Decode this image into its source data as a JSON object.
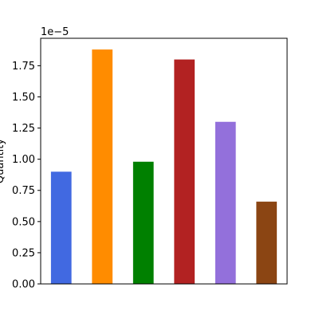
{
  "chart_data": {
    "type": "bar",
    "title": "",
    "xlabel": "",
    "ylabel": "Quantity",
    "scale_label": "1e−5",
    "ylim": [
      0,
      1.97
    ],
    "yticks": [
      0.0,
      0.25,
      0.5,
      0.75,
      1.0,
      1.25,
      1.5,
      1.75
    ],
    "ytick_labels": [
      "0.00",
      "0.25",
      "0.50",
      "0.75",
      "1.00",
      "1.25",
      "1.50",
      "1.75"
    ],
    "grid": false,
    "legend": "none",
    "values": [
      0.9,
      1.88,
      0.98,
      1.8,
      1.3,
      0.66
    ],
    "colors": [
      "#4169e1",
      "#ff8c00",
      "#008000",
      "#b22222",
      "#9370db",
      "#8b4513"
    ]
  }
}
